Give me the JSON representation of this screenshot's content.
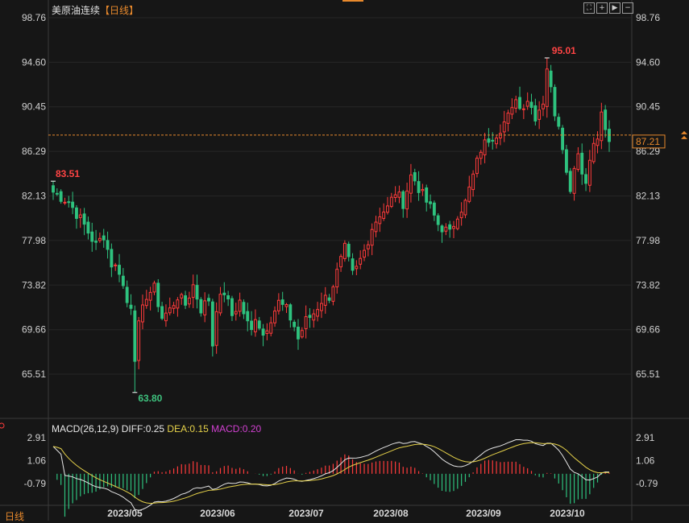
{
  "title": {
    "instrument": "美原油连续",
    "period": "【日线】"
  },
  "toolbar": {
    "buttons": [
      {
        "name": "fit-icon",
        "glyph": "⛶"
      },
      {
        "name": "zoom-in-icon",
        "glyph": "+"
      },
      {
        "name": "play-icon",
        "glyph": "▶"
      },
      {
        "name": "zoom-out-icon",
        "glyph": "−"
      }
    ]
  },
  "price_axis": {
    "ticks": [
      "98.76",
      "94.60",
      "90.45",
      "86.29",
      "82.13",
      "77.98",
      "73.82",
      "69.66",
      "65.51"
    ],
    "last_price": "87.21"
  },
  "annotations": {
    "start_high": "83.51",
    "max_high": "95.01",
    "min_low": "63.80"
  },
  "macd_header": {
    "params": "MACD(26,12,9)",
    "diff_label": "DIFF:0.25",
    "dea_label": "DEA:0.15",
    "macd_label": "MACD:0.20"
  },
  "macd_axis": {
    "ticks": [
      "2.91",
      "1.06",
      "-0.79"
    ]
  },
  "x_axis": {
    "labels": [
      "2023/05",
      "2023/06",
      "2023/07",
      "2023/08",
      "2023/09",
      "2023/10"
    ]
  },
  "period_tab": "日线",
  "colors": {
    "up": "#ff3b3b",
    "down": "#2ec27e",
    "diff_line": "#e6e6e6",
    "dea_line": "#e6d24a",
    "last_price_line": "#e8892c",
    "max_label": "#ff4444",
    "min_label": "#3ec27e"
  },
  "chart_data": {
    "type": "candlestick",
    "title": "美原油连续【日线】",
    "price_range": [
      62.0,
      98.76
    ],
    "close_path": [
      [
        0,
        82.5
      ],
      [
        4,
        81.6
      ],
      [
        8,
        79.4
      ],
      [
        11,
        77.5
      ],
      [
        13,
        78.5
      ],
      [
        15,
        75.8
      ],
      [
        17,
        75.2
      ],
      [
        19,
        72.2
      ],
      [
        20,
        72.0
      ],
      [
        21,
        67.2
      ],
      [
        22,
        70.0
      ],
      [
        24,
        72.9
      ],
      [
        26,
        73.5
      ],
      [
        28,
        70.8
      ],
      [
        30,
        71.5
      ],
      [
        32,
        72.8
      ],
      [
        34,
        72.0
      ],
      [
        36,
        73.8
      ],
      [
        38,
        71.6
      ],
      [
        40,
        72.5
      ],
      [
        41,
        68.3
      ],
      [
        42,
        71.8
      ],
      [
        44,
        73.2
      ],
      [
        46,
        71.0
      ],
      [
        48,
        72.3
      ],
      [
        50,
        70.2
      ],
      [
        51,
        69.5
      ],
      [
        52,
        71.0
      ],
      [
        54,
        69.2
      ],
      [
        56,
        70.8
      ],
      [
        58,
        72.2
      ],
      [
        60,
        71.5
      ],
      [
        62,
        70.0
      ],
      [
        63,
        68.8
      ],
      [
        65,
        70.5
      ],
      [
        67,
        71.2
      ],
      [
        69,
        72.4
      ],
      [
        71,
        72.8
      ],
      [
        73,
        75.0
      ],
      [
        75,
        77.2
      ],
      [
        77,
        74.8
      ],
      [
        78,
        75.3
      ],
      [
        80,
        77.0
      ],
      [
        82,
        79.2
      ],
      [
        84,
        80.5
      ],
      [
        86,
        81.0
      ],
      [
        88,
        82.5
      ],
      [
        90,
        81.5
      ],
      [
        92,
        84.0
      ],
      [
        93,
        83.6
      ],
      [
        95,
        82.2
      ],
      [
        97,
        81.0
      ],
      [
        99,
        79.5
      ],
      [
        101,
        78.9
      ],
      [
        102,
        78.6
      ],
      [
        104,
        80.5
      ],
      [
        106,
        81.5
      ],
      [
        108,
        84.0
      ],
      [
        110,
        86.5
      ],
      [
        112,
        87.5
      ],
      [
        114,
        88.0
      ],
      [
        116,
        89.0
      ],
      [
        118,
        90.0
      ],
      [
        119,
        91.5
      ],
      [
        120,
        90.3
      ],
      [
        122,
        91.2
      ],
      [
        124,
        89.6
      ],
      [
        126,
        91.0
      ],
      [
        127,
        94.2
      ],
      [
        128,
        92.0
      ],
      [
        129,
        90.0
      ],
      [
        130,
        89.0
      ],
      [
        131,
        87.0
      ],
      [
        132,
        84.2
      ],
      [
        133,
        83.0
      ],
      [
        134,
        84.8
      ],
      [
        135,
        86.5
      ],
      [
        136,
        84.2
      ],
      [
        137,
        83.4
      ],
      [
        138,
        86.0
      ],
      [
        140,
        87.5
      ],
      [
        141,
        89.7
      ],
      [
        142,
        88.5
      ],
      [
        143,
        87.2
      ]
    ],
    "marked_points": {
      "start_high": 83.51,
      "max_high": 95.01,
      "min_low": 63.8
    },
    "macd": {
      "params": [
        26,
        12,
        9
      ],
      "diff": 0.25,
      "dea": 0.15,
      "macd": 0.2,
      "range": [
        -2.6,
        2.91
      ]
    },
    "x_labels": [
      "2023/05",
      "2023/06",
      "2023/07",
      "2023/08",
      "2023/09",
      "2023/10"
    ]
  }
}
